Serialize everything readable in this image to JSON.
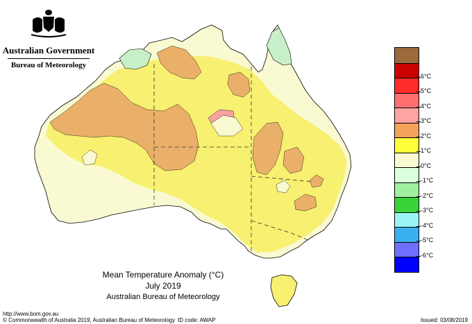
{
  "header": {
    "org": "Australian Government",
    "bureau": "Bureau of Meteorology"
  },
  "map": {
    "title": "Mean Temperature Anomaly (°C)",
    "period": "July 2019",
    "source": "Australian Bureau of Meteorology",
    "colors": {
      "ocean": "#ffffff",
      "zero": "#fafad2",
      "one": "#f7f070",
      "two": "#f5d94a",
      "three": "#eab06a",
      "four": "#f9a0a0",
      "negative_one": "#c8f0c8",
      "state_borders": "#333333"
    }
  },
  "legend": {
    "items": [
      {
        "label": "",
        "color": "#9b6a3a"
      },
      {
        "label": "6°C",
        "color": "#cc0000"
      },
      {
        "label": "5°C",
        "color": "#ff2a2a"
      },
      {
        "label": "4°C",
        "color": "#ff6f6f"
      },
      {
        "label": "3°C",
        "color": "#ffa3a3"
      },
      {
        "label": "2°C",
        "color": "#f5a25a"
      },
      {
        "label": "1°C",
        "color": "#ffff3a"
      },
      {
        "label": "0°C",
        "color": "#fafad2"
      },
      {
        "label": "-1°C",
        "color": "#dcffdc"
      },
      {
        "label": "-2°C",
        "color": "#a0f0a0"
      },
      {
        "label": "-3°C",
        "color": "#3ad43a"
      },
      {
        "label": "-4°C",
        "color": "#9cf5f5"
      },
      {
        "label": "-5°C",
        "color": "#3ab0f0"
      },
      {
        "label": "-6°C",
        "color": "#7070ff"
      },
      {
        "label": "",
        "color": "#0000ff"
      }
    ]
  },
  "footer": {
    "url": "http://www.bom.gov.au",
    "copyright": "© Commonwealth of Australia 2019, Australian Bureau of Meteorology",
    "id_code": "ID code: AWAP",
    "issued": "Issued: 03/08/2019"
  }
}
